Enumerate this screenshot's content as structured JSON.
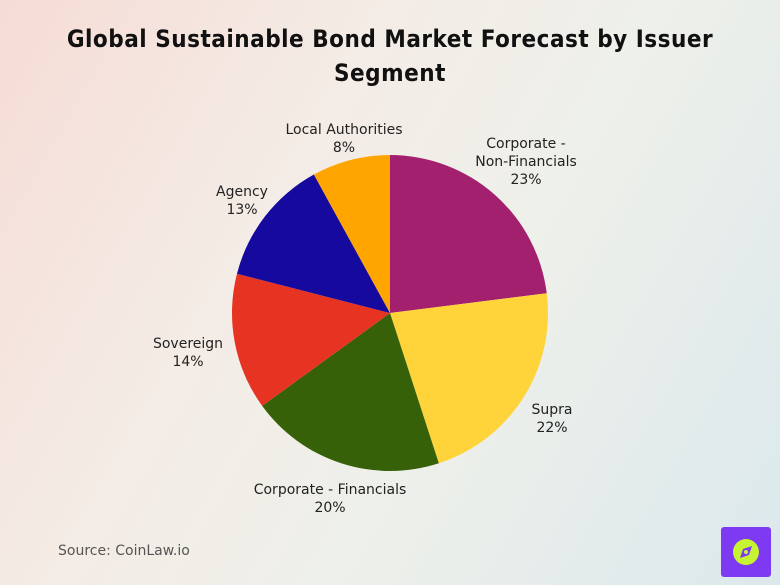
{
  "chart_data": {
    "type": "pie",
    "title": "Global Sustainable Bond Market Forecast by Issuer Segment",
    "slices": [
      {
        "label_lines": [
          "Corporate -",
          "Non-Financials"
        ],
        "value": 23,
        "value_label": "23%",
        "color": "#a3206f"
      },
      {
        "label_lines": [
          "Supra"
        ],
        "value": 22,
        "value_label": "22%",
        "color": "#ffd43a"
      },
      {
        "label_lines": [
          "Corporate - Financials"
        ],
        "value": 20,
        "value_label": "20%",
        "color": "#376108"
      },
      {
        "label_lines": [
          "Sovereign"
        ],
        "value": 14,
        "value_label": "14%",
        "color": "#e63322"
      },
      {
        "label_lines": [
          "Agency"
        ],
        "value": 13,
        "value_label": "13%",
        "color": "#16099e"
      },
      {
        "label_lines": [
          "Local Authorities"
        ],
        "value": 8,
        "value_label": "8%",
        "color": "#ffa500"
      }
    ],
    "legend": "none",
    "start": "12 o'clock, clockwise"
  },
  "source": "Source: CoinLaw.io",
  "logo": {
    "icon": "compass-icon",
    "background": "#7e3af2",
    "accent": "#c6f432"
  }
}
